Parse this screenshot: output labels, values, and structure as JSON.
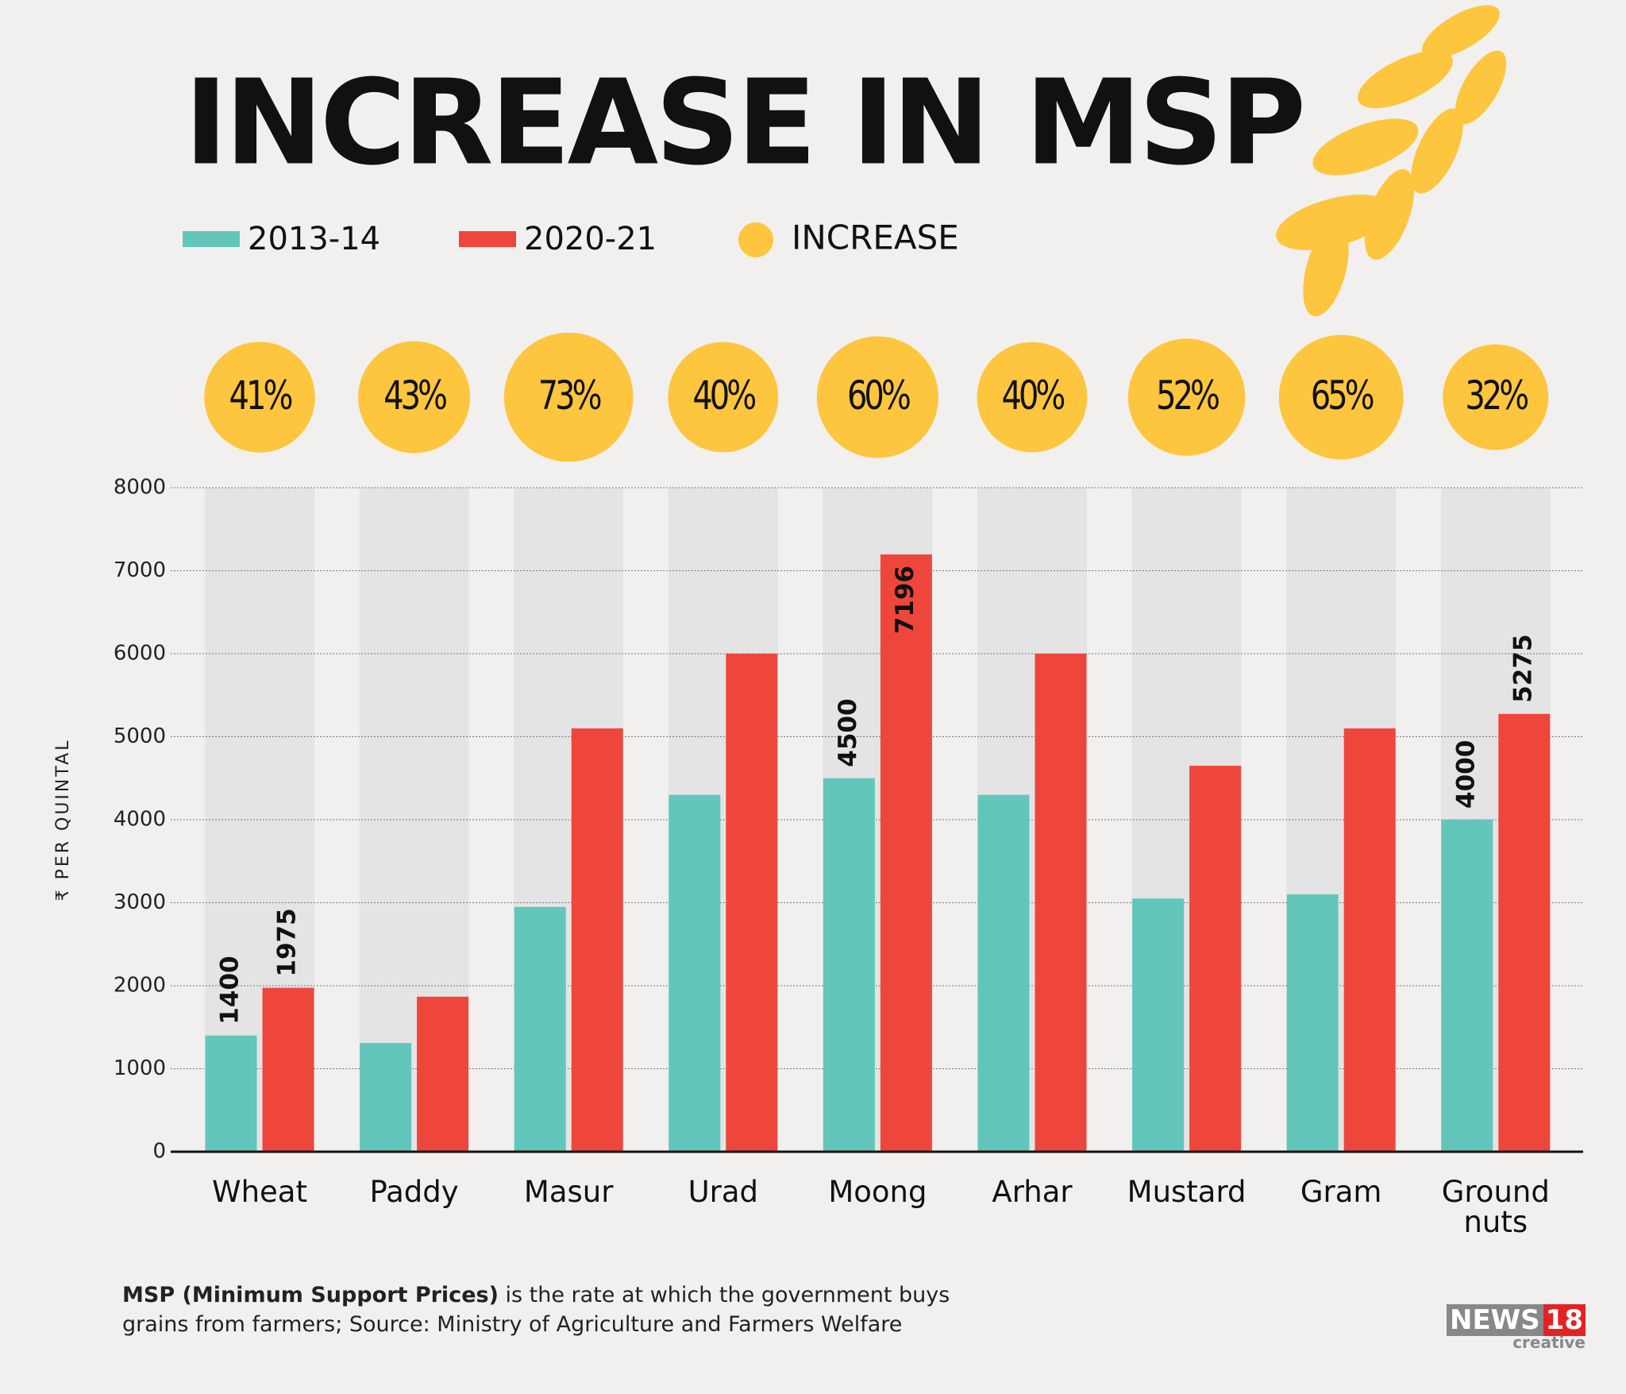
{
  "chart_data": {
    "type": "bar",
    "title": "INCREASE IN MSP",
    "y_label": "₹ PER QUINTAL",
    "categories": [
      "Wheat",
      "Paddy",
      "Masur",
      "Urad",
      "Moong",
      "Arhar",
      "Mustard",
      "Gram",
      "Ground nuts"
    ],
    "series": [
      {
        "name": "2013-14",
        "color": "#62c6bb",
        "values": [
          1400,
          1310,
          2950,
          4300,
          4500,
          4300,
          3050,
          3100,
          4000
        ],
        "value_labels": [
          "1400",
          null,
          null,
          null,
          "4500",
          null,
          null,
          null,
          "4000"
        ]
      },
      {
        "name": "2020-21",
        "color": "#ef463c",
        "values": [
          1975,
          1868,
          5100,
          6000,
          7196,
          6000,
          4650,
          5100,
          5275
        ],
        "value_labels": [
          "1975",
          null,
          null,
          null,
          "7196",
          null,
          null,
          null,
          "5275"
        ]
      }
    ],
    "increase": {
      "name": "INCREASE",
      "color": "#fec53e",
      "values": [
        41,
        43,
        73,
        40,
        60,
        40,
        52,
        65,
        32
      ],
      "value_labels": [
        "41%",
        "43%",
        "73%",
        "40%",
        "60%",
        "40%",
        "52%",
        "65%",
        "32%"
      ]
    },
    "ylim": [
      0,
      8000
    ],
    "yticks": [
      0,
      1000,
      2000,
      3000,
      4000,
      5000,
      6000,
      7000,
      8000
    ],
    "grid": true
  },
  "footnote": {
    "bold": "MSP (Minimum Support Prices)",
    "text": "is the rate at which the government buys grains from farmers; Source: Ministry of Agriculture and Farmers Welfare"
  },
  "logo": {
    "main": "NEWS",
    "number": "18",
    "sub": "creative"
  }
}
